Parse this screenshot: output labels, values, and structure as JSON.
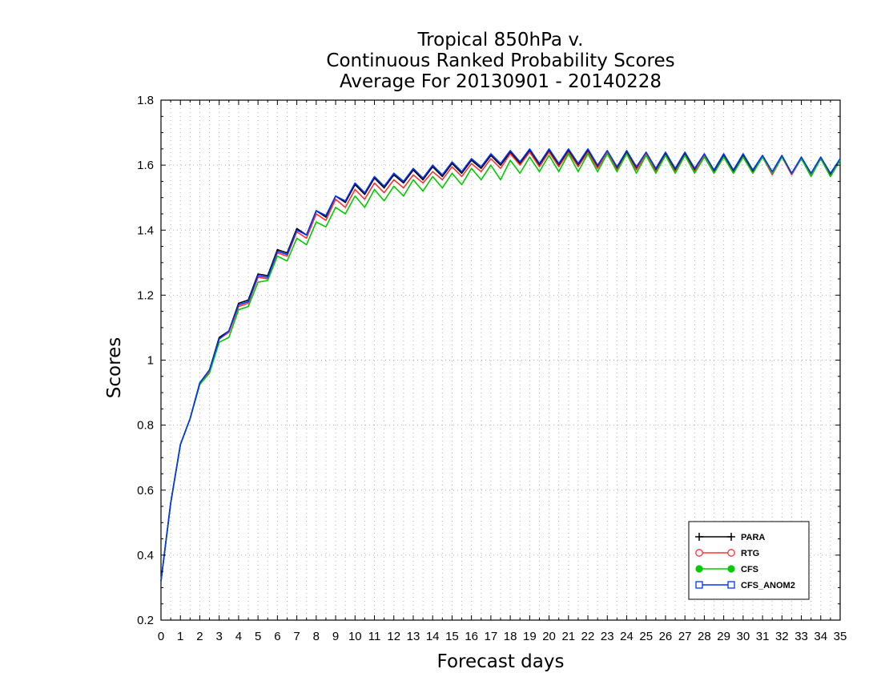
{
  "chart_data": {
    "type": "line",
    "title": [
      "Tropical 850hPa v.",
      "Continuous Ranked Probability Scores",
      "Average For 20130901 - 20140228"
    ],
    "xlabel": "Forecast days",
    "ylabel": "Scores",
    "xlim": [
      0,
      35
    ],
    "ylim": [
      0.2,
      1.8
    ],
    "xticks": [
      "0",
      "1",
      "2",
      "3",
      "4",
      "5",
      "6",
      "7",
      "8",
      "9",
      "10",
      "11",
      "12",
      "13",
      "14",
      "15",
      "16",
      "17",
      "18",
      "19",
      "20",
      "21",
      "22",
      "23",
      "24",
      "25",
      "26",
      "27",
      "28",
      "29",
      "30",
      "31",
      "32",
      "33",
      "34",
      "35"
    ],
    "yticks": [
      "0.2",
      "0.4",
      "0.6",
      "0.8",
      "1",
      "1.2",
      "1.4",
      "1.6",
      "1.8"
    ],
    "grid": true,
    "legend_position": "bottom-right",
    "x": [
      0,
      0.5,
      1,
      1.5,
      2,
      2.5,
      3,
      3.5,
      4,
      4.5,
      5,
      5.5,
      6,
      6.5,
      7,
      7.5,
      8,
      8.5,
      9,
      9.5,
      10,
      10.5,
      11,
      11.5,
      12,
      12.5,
      13,
      13.5,
      14,
      14.5,
      15,
      15.5,
      16,
      16.5,
      17,
      17.5,
      18,
      18.5,
      19,
      19.5,
      20,
      20.5,
      21,
      21.5,
      22,
      22.5,
      23,
      23.5,
      24,
      24.5,
      25,
      25.5,
      26,
      26.5,
      27,
      27.5,
      28,
      28.5,
      29,
      29.5,
      30,
      30.5,
      31,
      31.5,
      32,
      32.5,
      33,
      33.5,
      34,
      34.5,
      35
    ],
    "series": [
      {
        "name": "PARA",
        "color": "#000000",
        "marker": "plus",
        "values": [
          0.32,
          0.56,
          0.74,
          0.82,
          0.93,
          0.97,
          1.07,
          1.09,
          1.175,
          1.185,
          1.265,
          1.26,
          1.34,
          1.33,
          1.405,
          1.385,
          1.46,
          1.44,
          1.505,
          1.485,
          1.54,
          1.51,
          1.56,
          1.53,
          1.57,
          1.545,
          1.585,
          1.555,
          1.595,
          1.565,
          1.605,
          1.575,
          1.615,
          1.59,
          1.63,
          1.6,
          1.64,
          1.605,
          1.645,
          1.6,
          1.645,
          1.6,
          1.645,
          1.6,
          1.645,
          1.595,
          1.64,
          1.59,
          1.64,
          1.59,
          1.635,
          1.585,
          1.635,
          1.585,
          1.635,
          1.585,
          1.63,
          1.58,
          1.63,
          1.58,
          1.63,
          1.58,
          1.625,
          1.575,
          1.625,
          1.575,
          1.62,
          1.57,
          1.62,
          1.57,
          1.615
        ]
      },
      {
        "name": "RTG",
        "color": "#ff3333",
        "marker": "circle-open",
        "values": [
          0.32,
          0.56,
          0.74,
          0.82,
          0.925,
          0.965,
          1.065,
          1.085,
          1.165,
          1.175,
          1.255,
          1.25,
          1.33,
          1.32,
          1.395,
          1.375,
          1.45,
          1.43,
          1.495,
          1.47,
          1.525,
          1.495,
          1.545,
          1.515,
          1.555,
          1.53,
          1.57,
          1.545,
          1.58,
          1.555,
          1.595,
          1.565,
          1.605,
          1.58,
          1.62,
          1.59,
          1.635,
          1.6,
          1.64,
          1.595,
          1.64,
          1.595,
          1.64,
          1.595,
          1.64,
          1.59,
          1.64,
          1.585,
          1.635,
          1.585,
          1.635,
          1.58,
          1.63,
          1.58,
          1.63,
          1.58,
          1.63,
          1.575,
          1.625,
          1.575,
          1.625,
          1.575,
          1.625,
          1.57,
          1.625,
          1.57,
          1.62,
          1.57,
          1.62,
          1.565,
          1.615
        ]
      },
      {
        "name": "CFS",
        "color": "#00cc00",
        "marker": "circle-filled",
        "values": [
          0.32,
          0.56,
          0.74,
          0.82,
          0.925,
          0.96,
          1.055,
          1.07,
          1.155,
          1.165,
          1.24,
          1.245,
          1.32,
          1.305,
          1.375,
          1.355,
          1.425,
          1.41,
          1.47,
          1.45,
          1.505,
          1.47,
          1.525,
          1.49,
          1.535,
          1.505,
          1.555,
          1.52,
          1.565,
          1.53,
          1.575,
          1.54,
          1.59,
          1.555,
          1.6,
          1.555,
          1.615,
          1.575,
          1.625,
          1.58,
          1.63,
          1.58,
          1.635,
          1.58,
          1.635,
          1.58,
          1.635,
          1.58,
          1.635,
          1.575,
          1.63,
          1.575,
          1.63,
          1.575,
          1.63,
          1.575,
          1.625,
          1.575,
          1.625,
          1.575,
          1.625,
          1.575,
          1.625,
          1.575,
          1.625,
          1.575,
          1.62,
          1.565,
          1.62,
          1.565,
          1.615
        ]
      },
      {
        "name": "CFS_ANOM2",
        "color": "#0033ff",
        "marker": "square-open",
        "values": [
          0.32,
          0.56,
          0.74,
          0.82,
          0.93,
          0.97,
          1.065,
          1.09,
          1.17,
          1.18,
          1.26,
          1.255,
          1.335,
          1.325,
          1.4,
          1.385,
          1.46,
          1.445,
          1.505,
          1.49,
          1.545,
          1.515,
          1.565,
          1.535,
          1.575,
          1.55,
          1.59,
          1.56,
          1.6,
          1.57,
          1.61,
          1.58,
          1.62,
          1.595,
          1.635,
          1.605,
          1.645,
          1.61,
          1.65,
          1.605,
          1.65,
          1.605,
          1.65,
          1.605,
          1.65,
          1.6,
          1.645,
          1.595,
          1.645,
          1.595,
          1.64,
          1.59,
          1.64,
          1.59,
          1.64,
          1.59,
          1.635,
          1.585,
          1.635,
          1.585,
          1.635,
          1.585,
          1.63,
          1.58,
          1.63,
          1.575,
          1.625,
          1.575,
          1.625,
          1.575,
          1.62
        ]
      }
    ]
  }
}
